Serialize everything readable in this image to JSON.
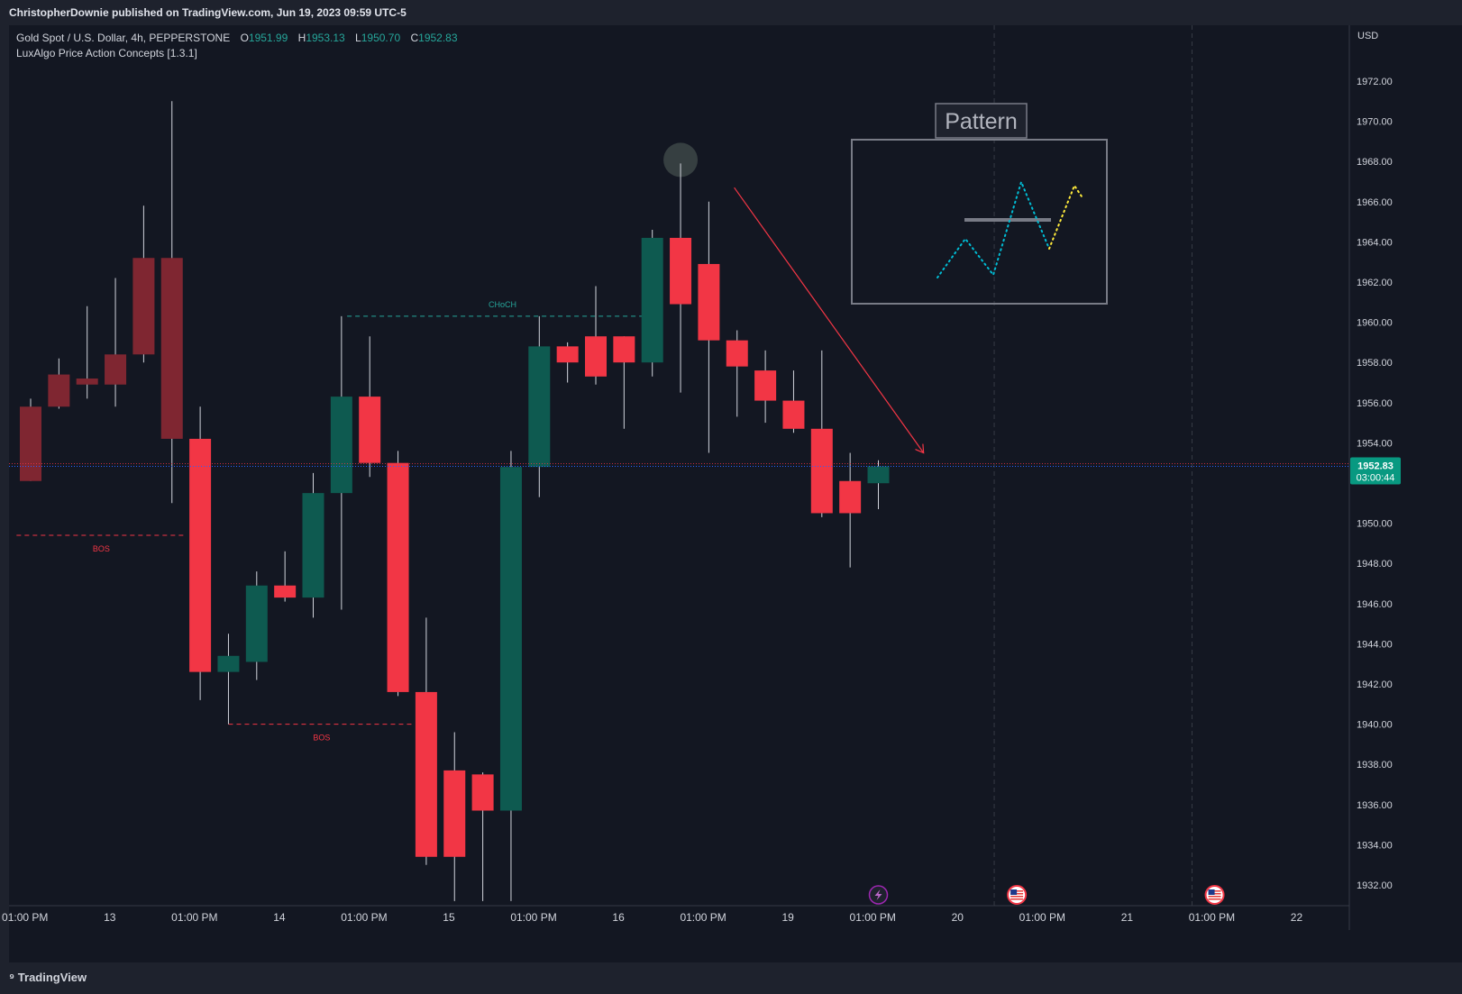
{
  "header": {
    "published_line": "ChristopherDownie published on TradingView.com, Jun 19, 2023 09:59 UTC-5"
  },
  "legend": {
    "symbol_line": "Gold Spot / U.S. Dollar, 4h, PEPPERSTONE",
    "o_label": "O",
    "o_value": "1951.99",
    "h_label": "H",
    "h_value": "1953.13",
    "l_label": "L",
    "l_value": "1950.70",
    "c_label": "C",
    "c_value": "1952.83",
    "indicator": "LuxAlgo Price Action Concepts [1.3.1]"
  },
  "colors": {
    "background": "#131722",
    "up": "#0e5a50",
    "down": "#f23645",
    "down_faded": "#7f2631",
    "grid": "#2a2e39",
    "axis_text": "#d1d4dc",
    "price_badge": "#089981"
  },
  "footer": {
    "brand": "TradingView"
  },
  "chart_data": {
    "type": "candlestick",
    "currency": "USD",
    "ylim": [
      1931,
      1975
    ],
    "y_ticks": [
      1972,
      1970,
      1968,
      1966,
      1964,
      1962,
      1960,
      1958,
      1956,
      1954,
      1952,
      1950,
      1948,
      1946,
      1944,
      1942,
      1940,
      1938,
      1936,
      1934,
      1932
    ],
    "y_tick_labels": [
      "1972.00",
      "1970.00",
      "1968.00",
      "1966.00",
      "1964.00",
      "1962.00",
      "1960.00",
      "1958.00",
      "1956.00",
      "1954.00",
      "",
      "1950.00",
      "1948.00",
      "1946.00",
      "1944.00",
      "1942.00",
      "1940.00",
      "1938.00",
      "1936.00",
      "1934.00",
      "1932.00"
    ],
    "x_ticks": [
      {
        "i": -0.2,
        "label": "01:00 PM"
      },
      {
        "i": 2.8,
        "label": "13"
      },
      {
        "i": 5.8,
        "label": "01:00 PM"
      },
      {
        "i": 8.8,
        "label": "14"
      },
      {
        "i": 11.8,
        "label": "01:00 PM"
      },
      {
        "i": 14.8,
        "label": "15"
      },
      {
        "i": 17.8,
        "label": "01:00 PM"
      },
      {
        "i": 20.8,
        "label": "16"
      },
      {
        "i": 23.8,
        "label": "01:00 PM"
      },
      {
        "i": 26.8,
        "label": "19"
      },
      {
        "i": 29.8,
        "label": "01:00 PM"
      },
      {
        "i": 32.8,
        "label": "20"
      },
      {
        "i": 35.8,
        "label": "01:00 PM"
      },
      {
        "i": 38.8,
        "label": "21"
      },
      {
        "i": 41.8,
        "label": "01:00 PM"
      },
      {
        "i": 44.8,
        "label": "22"
      }
    ],
    "day_separators": [
      34.1,
      41.1
    ],
    "candles": [
      {
        "o": 1955.8,
        "h": 1956.2,
        "l": 1952.1,
        "c": 1952.1,
        "faded": true
      },
      {
        "o": 1955.8,
        "h": 1958.2,
        "l": 1955.7,
        "c": 1957.4,
        "faded": true
      },
      {
        "o": 1957.2,
        "h": 1960.8,
        "l": 1956.2,
        "c": 1956.9,
        "faded": true
      },
      {
        "o": 1956.9,
        "h": 1962.2,
        "l": 1955.8,
        "c": 1958.4,
        "faded": true
      },
      {
        "o": 1958.4,
        "h": 1965.8,
        "l": 1958.0,
        "c": 1963.2,
        "faded": true
      },
      {
        "o": 1963.2,
        "h": 1971.0,
        "l": 1951.0,
        "c": 1954.2,
        "faded": true
      },
      {
        "o": 1954.2,
        "h": 1955.8,
        "l": 1941.2,
        "c": 1942.6
      },
      {
        "o": 1942.6,
        "h": 1944.5,
        "l": 1940.0,
        "c": 1943.4
      },
      {
        "o": 1943.1,
        "h": 1947.6,
        "l": 1942.2,
        "c": 1946.9
      },
      {
        "o": 1946.9,
        "h": 1948.6,
        "l": 1946.1,
        "c": 1946.3
      },
      {
        "o": 1946.3,
        "h": 1952.5,
        "l": 1945.3,
        "c": 1951.5
      },
      {
        "o": 1951.5,
        "h": 1960.3,
        "l": 1945.7,
        "c": 1956.3
      },
      {
        "o": 1956.3,
        "h": 1959.3,
        "l": 1952.3,
        "c": 1953.0
      },
      {
        "o": 1953.0,
        "h": 1953.6,
        "l": 1941.4,
        "c": 1941.6
      },
      {
        "o": 1941.6,
        "h": 1945.3,
        "l": 1933.0,
        "c": 1933.4
      },
      {
        "o": 1937.7,
        "h": 1939.6,
        "l": 1931.2,
        "c": 1933.4
      },
      {
        "o": 1937.5,
        "h": 1937.6,
        "l": 1931.2,
        "c": 1935.7
      },
      {
        "o": 1935.7,
        "h": 1953.6,
        "l": 1931.2,
        "c": 1952.8
      },
      {
        "o": 1952.8,
        "h": 1960.3,
        "l": 1951.3,
        "c": 1958.8
      },
      {
        "o": 1958.8,
        "h": 1959.0,
        "l": 1957.0,
        "c": 1958.0
      },
      {
        "o": 1959.3,
        "h": 1961.8,
        "l": 1956.9,
        "c": 1957.3
      },
      {
        "o": 1959.3,
        "h": 1959.3,
        "l": 1954.7,
        "c": 1958.0
      },
      {
        "o": 1958.0,
        "h": 1964.6,
        "l": 1957.3,
        "c": 1964.2
      },
      {
        "o": 1964.2,
        "h": 1967.9,
        "l": 1956.5,
        "c": 1960.9
      },
      {
        "o": 1962.9,
        "h": 1966.0,
        "l": 1953.5,
        "c": 1959.1
      },
      {
        "o": 1959.1,
        "h": 1959.6,
        "l": 1955.3,
        "c": 1957.8
      },
      {
        "o": 1957.6,
        "h": 1958.6,
        "l": 1955.0,
        "c": 1956.1
      },
      {
        "o": 1956.1,
        "h": 1957.6,
        "l": 1954.5,
        "c": 1954.7
      },
      {
        "o": 1954.7,
        "h": 1958.6,
        "l": 1950.3,
        "c": 1950.5
      },
      {
        "o": 1952.1,
        "h": 1953.5,
        "l": 1947.8,
        "c": 1950.5
      },
      {
        "o": 1951.99,
        "h": 1953.13,
        "l": 1950.7,
        "c": 1952.83
      }
    ],
    "annotations": [
      {
        "label": "CHoCH",
        "price": 1960.3,
        "from": 11.2,
        "to": 22.2,
        "color": "#26a69a"
      },
      {
        "label": "BOS",
        "price": 1949.4,
        "from": -0.5,
        "to": 5.5,
        "color": "#f23645"
      },
      {
        "label": "BOS",
        "price": 1940.0,
        "from": 7.0,
        "to": 13.6,
        "color": "#f23645"
      }
    ],
    "pattern_box": {
      "title": "Pattern"
    },
    "arrow": {
      "from": {
        "i": 24.9,
        "p": 1966.7
      },
      "to": {
        "i": 31.6,
        "p": 1953.5
      },
      "color": "#f23645"
    },
    "top_marker": {
      "i": 23.0,
      "p": 1967.9
    },
    "current_price": {
      "value": "1952.83",
      "countdown": "03:00:44"
    },
    "events": [
      {
        "i": 30.0,
        "type": "bolt"
      },
      {
        "i": 34.9,
        "type": "flag"
      },
      {
        "i": 41.9,
        "type": "flag"
      }
    ]
  }
}
